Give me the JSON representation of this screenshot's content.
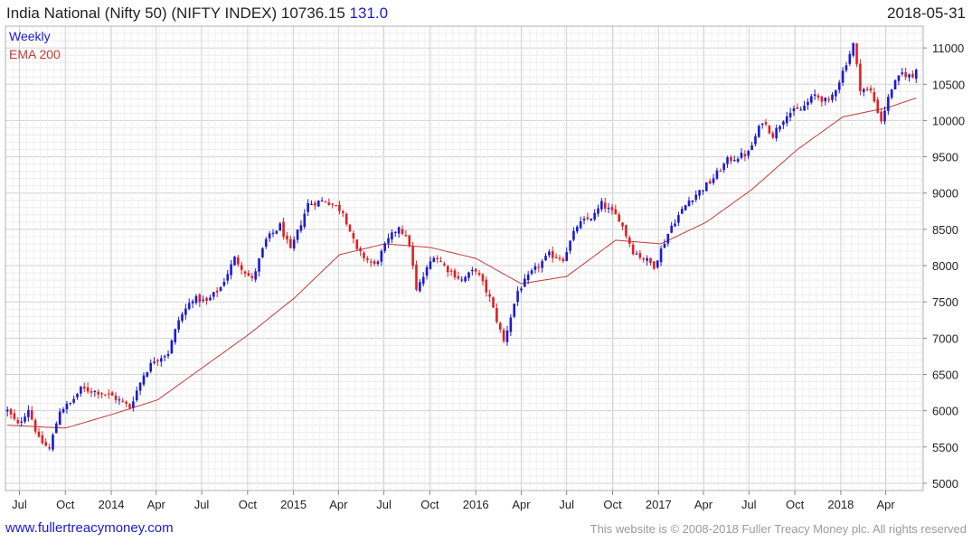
{
  "header": {
    "title": "India National (Nifty 50) (NIFTY INDEX) 10736.15",
    "change": "131.0",
    "date": "2018-05-31"
  },
  "footer": {
    "site": "www.fullertreacymoney.com",
    "copyright": "This website is © 2008-2018 Fuller Treacy Money plc. All rights reserved"
  },
  "colors": {
    "up": "#1a1ad6",
    "down": "#e02020",
    "ema": "#c43a3a",
    "grid": "#d9d9d9"
  },
  "chart_data": {
    "type": "candlestick",
    "legend": [
      "Weekly",
      "EMA 200"
    ],
    "legend_position": "top-left",
    "grid": true,
    "ylim": [
      4900,
      11300
    ],
    "y_ticks": [
      5000,
      5500,
      6000,
      6500,
      7000,
      7500,
      8000,
      8500,
      9000,
      9500,
      10000,
      10500,
      11000
    ],
    "x_tick_labels": [
      "Jul",
      "Oct",
      "2014",
      "Apr",
      "Jul",
      "Oct",
      "2015",
      "Apr",
      "Jul",
      "Oct",
      "2016",
      "Apr",
      "Jul",
      "Oct",
      "2017",
      "Apr",
      "Jul",
      "Oct",
      "2018",
      "Apr"
    ],
    "x_ticks": [
      "2013-07-01",
      "2013-10-01",
      "2014-01-01",
      "2014-04-01",
      "2014-07-01",
      "2014-10-01",
      "2015-01-01",
      "2015-04-01",
      "2015-07-01",
      "2015-10-01",
      "2016-01-01",
      "2016-04-01",
      "2016-07-01",
      "2016-10-01",
      "2017-01-01",
      "2017-04-01",
      "2017-07-01",
      "2017-10-01",
      "2018-01-01",
      "2018-04-01"
    ],
    "x_range": [
      "2013-06-03",
      "2018-06-15"
    ],
    "price_anchors": [
      {
        "date": "2013-06-07",
        "close": 6000
      },
      {
        "date": "2013-06-28",
        "close": 5800
      },
      {
        "date": "2013-07-19",
        "close": 6030
      },
      {
        "date": "2013-08-09",
        "close": 5600
      },
      {
        "date": "2013-08-30",
        "close": 5470
      },
      {
        "date": "2013-09-20",
        "close": 6010
      },
      {
        "date": "2013-10-11",
        "close": 6100
      },
      {
        "date": "2013-11-01",
        "close": 6300
      },
      {
        "date": "2013-12-06",
        "close": 6260
      },
      {
        "date": "2014-01-03",
        "close": 6200
      },
      {
        "date": "2014-02-07",
        "close": 6050
      },
      {
        "date": "2014-03-07",
        "close": 6500
      },
      {
        "date": "2014-03-28",
        "close": 6700
      },
      {
        "date": "2014-04-25",
        "close": 6800
      },
      {
        "date": "2014-05-16",
        "close": 7250
      },
      {
        "date": "2014-06-13",
        "close": 7550
      },
      {
        "date": "2014-07-11",
        "close": 7500
      },
      {
        "date": "2014-08-08",
        "close": 7700
      },
      {
        "date": "2014-09-05",
        "close": 8100
      },
      {
        "date": "2014-10-10",
        "close": 7800
      },
      {
        "date": "2014-11-07",
        "close": 8350
      },
      {
        "date": "2014-12-05",
        "close": 8550
      },
      {
        "date": "2014-12-26",
        "close": 8200
      },
      {
        "date": "2015-01-30",
        "close": 8850
      },
      {
        "date": "2015-03-06",
        "close": 8900
      },
      {
        "date": "2015-04-10",
        "close": 8750
      },
      {
        "date": "2015-05-08",
        "close": 8200
      },
      {
        "date": "2015-06-12",
        "close": 8000
      },
      {
        "date": "2015-07-10",
        "close": 8350
      },
      {
        "date": "2015-07-31",
        "close": 8550
      },
      {
        "date": "2015-08-21",
        "close": 8300
      },
      {
        "date": "2015-09-04",
        "close": 7650
      },
      {
        "date": "2015-10-09",
        "close": 8150
      },
      {
        "date": "2015-11-06",
        "close": 7950
      },
      {
        "date": "2015-12-04",
        "close": 7800
      },
      {
        "date": "2016-01-01",
        "close": 7950
      },
      {
        "date": "2016-01-29",
        "close": 7550
      },
      {
        "date": "2016-02-26",
        "close": 6950
      },
      {
        "date": "2016-03-25",
        "close": 7650
      },
      {
        "date": "2016-04-22",
        "close": 7900
      },
      {
        "date": "2016-05-27",
        "close": 8150
      },
      {
        "date": "2016-06-24",
        "close": 8100
      },
      {
        "date": "2016-07-22",
        "close": 8550
      },
      {
        "date": "2016-08-26",
        "close": 8700
      },
      {
        "date": "2016-09-09",
        "close": 8850
      },
      {
        "date": "2016-10-14",
        "close": 8650
      },
      {
        "date": "2016-11-11",
        "close": 8200
      },
      {
        "date": "2016-12-23",
        "close": 8000
      },
      {
        "date": "2017-01-27",
        "close": 8550
      },
      {
        "date": "2017-03-03",
        "close": 8900
      },
      {
        "date": "2017-04-14",
        "close": 9150
      },
      {
        "date": "2017-05-19",
        "close": 9450
      },
      {
        "date": "2017-06-30",
        "close": 9550
      },
      {
        "date": "2017-07-28",
        "close": 10000
      },
      {
        "date": "2017-08-18",
        "close": 9800
      },
      {
        "date": "2017-09-15",
        "close": 10100
      },
      {
        "date": "2017-10-13",
        "close": 10150
      },
      {
        "date": "2017-11-10",
        "close": 10350
      },
      {
        "date": "2017-12-08",
        "close": 10250
      },
      {
        "date": "2017-12-29",
        "close": 10550
      },
      {
        "date": "2018-01-26",
        "close": 11050
      },
      {
        "date": "2018-02-09",
        "close": 10450
      },
      {
        "date": "2018-03-02",
        "close": 10400
      },
      {
        "date": "2018-03-23",
        "close": 10000
      },
      {
        "date": "2018-04-13",
        "close": 10450
      },
      {
        "date": "2018-05-04",
        "close": 10650
      },
      {
        "date": "2018-05-25",
        "close": 10600
      },
      {
        "date": "2018-06-01",
        "close": 10736
      }
    ],
    "ema200_anchors": [
      {
        "date": "2013-06-07",
        "close": 5800
      },
      {
        "date": "2013-10-01",
        "close": 5760
      },
      {
        "date": "2014-01-03",
        "close": 5950
      },
      {
        "date": "2014-04-04",
        "close": 6150
      },
      {
        "date": "2014-07-04",
        "close": 6600
      },
      {
        "date": "2014-10-03",
        "close": 7050
      },
      {
        "date": "2015-01-02",
        "close": 7550
      },
      {
        "date": "2015-04-03",
        "close": 8150
      },
      {
        "date": "2015-07-03",
        "close": 8300
      },
      {
        "date": "2015-10-02",
        "close": 8250
      },
      {
        "date": "2016-01-01",
        "close": 8100
      },
      {
        "date": "2016-04-01",
        "close": 7750
      },
      {
        "date": "2016-07-01",
        "close": 7850
      },
      {
        "date": "2016-10-07",
        "close": 8350
      },
      {
        "date": "2017-01-06",
        "close": 8300
      },
      {
        "date": "2017-04-07",
        "close": 8600
      },
      {
        "date": "2017-07-07",
        "close": 9050
      },
      {
        "date": "2017-10-06",
        "close": 9600
      },
      {
        "date": "2018-01-05",
        "close": 10050
      },
      {
        "date": "2018-04-06",
        "close": 10180
      },
      {
        "date": "2018-06-01",
        "close": 10310
      }
    ]
  }
}
